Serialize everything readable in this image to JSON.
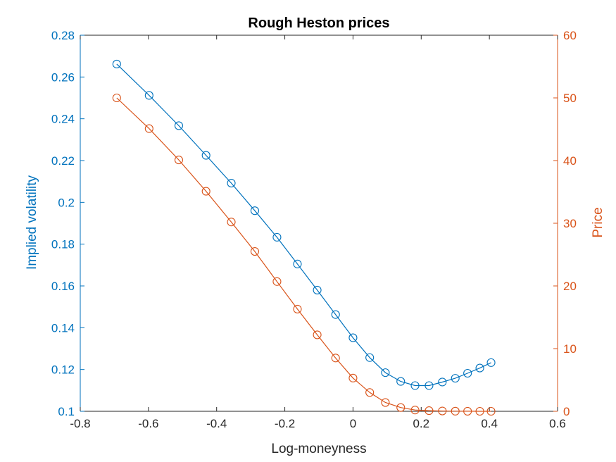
{
  "colors": {
    "left_axis": "#0072BD",
    "right_axis": "#D95319",
    "box": "#262626"
  },
  "chart_data": {
    "type": "line",
    "title": "Rough Heston prices",
    "xlabel": "Log-moneyness",
    "ylabel_left": "Implied volatility",
    "ylabel_right": "Price",
    "xlim": [
      -0.8,
      0.6
    ],
    "ylim_left": [
      0.1,
      0.28
    ],
    "ylim_right": [
      0,
      60
    ],
    "grid": false,
    "legend": "none",
    "x_ticks": [
      "-0.8",
      "-0.6",
      "-0.4",
      "-0.2",
      "0",
      "0.2",
      "0.4",
      "0.6"
    ],
    "y_left_ticks": [
      "0.1",
      "0.12",
      "0.14",
      "0.16",
      "0.18",
      "0.2",
      "0.22",
      "0.24",
      "0.26",
      "0.28"
    ],
    "y_right_ticks": [
      "0",
      "10",
      "20",
      "30",
      "40",
      "50",
      "60"
    ],
    "series": [
      {
        "axis": "left",
        "color": "#0072BD",
        "marker": "circle",
        "x": [
          -0.693,
          -0.598,
          -0.511,
          -0.431,
          -0.357,
          -0.288,
          -0.223,
          -0.163,
          -0.105,
          -0.051,
          0.0,
          0.049,
          0.095,
          0.14,
          0.182,
          0.223,
          0.262,
          0.3,
          0.336,
          0.372,
          0.405
        ],
        "y": [
          0.2662,
          0.2512,
          0.2367,
          0.2225,
          0.2092,
          0.196,
          0.1833,
          0.1705,
          0.158,
          0.1463,
          0.1352,
          0.1257,
          0.1185,
          0.1143,
          0.1123,
          0.1123,
          0.114,
          0.1158,
          0.1182,
          0.1207,
          0.1233
        ]
      },
      {
        "axis": "right",
        "color": "#D95319",
        "marker": "circle",
        "x": [
          -0.693,
          -0.598,
          -0.511,
          -0.431,
          -0.357,
          -0.288,
          -0.223,
          -0.163,
          -0.105,
          -0.051,
          0.0,
          0.049,
          0.095,
          0.14,
          0.182,
          0.223,
          0.262,
          0.3,
          0.336,
          0.372,
          0.405
        ],
        "y": [
          50.0,
          45.1,
          40.1,
          35.1,
          30.2,
          25.5,
          20.7,
          16.3,
          12.2,
          8.5,
          5.3,
          3.0,
          1.4,
          0.6,
          0.2,
          0.1,
          0.05,
          0.02,
          0.01,
          0.0,
          0.0
        ]
      }
    ]
  }
}
